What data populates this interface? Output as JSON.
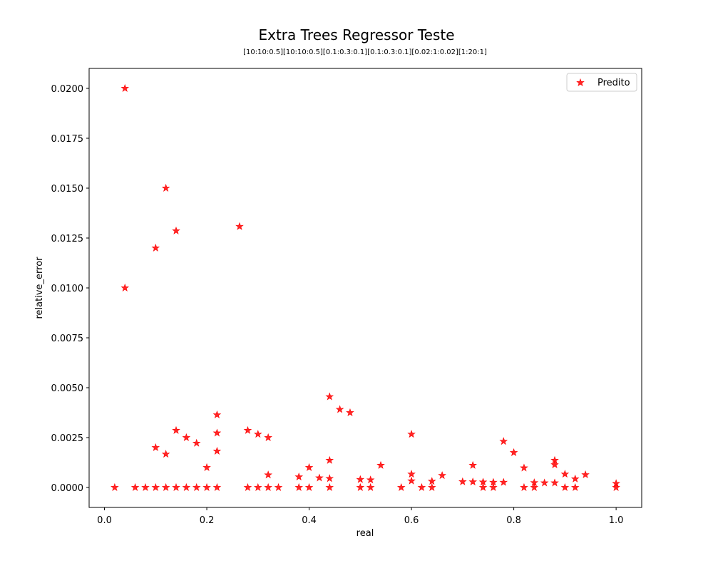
{
  "chart_data": {
    "type": "scatter",
    "title": "Extra Trees Regressor Teste",
    "subtitle": "[10:10:0.5][10:10:0.5][0.1:0.3:0.1][0.1:0.3:0.1][0.02:1:0.02][1:20:1]",
    "xlabel": "real",
    "ylabel": "relative_error",
    "xlim": [
      -0.03,
      1.05
    ],
    "ylim": [
      -0.001,
      0.021
    ],
    "xticks": [
      0.0,
      0.2,
      0.4,
      0.6,
      0.8,
      1.0
    ],
    "xtick_labels": [
      "0.0",
      "0.2",
      "0.4",
      "0.6",
      "0.8",
      "1.0"
    ],
    "yticks": [
      0.0,
      0.0025,
      0.005,
      0.0075,
      0.01,
      0.0125,
      0.015,
      0.0175,
      0.02
    ],
    "ytick_labels": [
      "0.0000",
      "0.0025",
      "0.0050",
      "0.0075",
      "0.0100",
      "0.0125",
      "0.0150",
      "0.0175",
      "0.0200"
    ],
    "grid": false,
    "legend_position": "top-right",
    "series": [
      {
        "name": "Predito",
        "color": "#ff0000",
        "marker": "star",
        "points": [
          [
            0.02,
            0.0
          ],
          [
            0.04,
            0.02
          ],
          [
            0.04,
            0.01
          ],
          [
            0.06,
            0.0
          ],
          [
            0.08,
            0.0
          ],
          [
            0.1,
            0.012
          ],
          [
            0.1,
            0.002
          ],
          [
            0.1,
            0.0
          ],
          [
            0.12,
            0.015
          ],
          [
            0.12,
            0.00167
          ],
          [
            0.12,
            0.0
          ],
          [
            0.14,
            0.01286
          ],
          [
            0.14,
            0.00286
          ],
          [
            0.14,
            0.0
          ],
          [
            0.16,
            0.0025
          ],
          [
            0.16,
            0.0
          ],
          [
            0.18,
            0.00222
          ],
          [
            0.18,
            0.0
          ],
          [
            0.2,
            0.001
          ],
          [
            0.2,
            0.0
          ],
          [
            0.22,
            0.00364
          ],
          [
            0.22,
            0.00273
          ],
          [
            0.22,
            0.00182
          ],
          [
            0.22,
            0.0
          ],
          [
            0.264,
            0.01308
          ],
          [
            0.28,
            0.00286
          ],
          [
            0.28,
            0.0
          ],
          [
            0.3,
            0.00267
          ],
          [
            0.3,
            0.0
          ],
          [
            0.32,
            0.0025
          ],
          [
            0.32,
            0.00063
          ],
          [
            0.32,
            0.0
          ],
          [
            0.34,
            0.0
          ],
          [
            0.38,
            0.00053
          ],
          [
            0.38,
            0.0
          ],
          [
            0.4,
            0.001
          ],
          [
            0.4,
            0.0
          ],
          [
            0.42,
            0.00048
          ],
          [
            0.44,
            0.00455
          ],
          [
            0.44,
            0.00136
          ],
          [
            0.44,
            0.00045
          ],
          [
            0.44,
            0.0
          ],
          [
            0.46,
            0.00391
          ],
          [
            0.48,
            0.00375
          ],
          [
            0.5,
            0.0004
          ],
          [
            0.5,
            0.0
          ],
          [
            0.52,
            0.00038
          ],
          [
            0.52,
            0.0
          ],
          [
            0.54,
            0.00111
          ],
          [
            0.58,
            0.0
          ],
          [
            0.6,
            0.00267
          ],
          [
            0.6,
            0.00067
          ],
          [
            0.6,
            0.00033
          ],
          [
            0.62,
            0.0
          ],
          [
            0.64,
            0.00031
          ],
          [
            0.64,
            0.0
          ],
          [
            0.66,
            0.0006
          ],
          [
            0.7,
            0.00029
          ],
          [
            0.72,
            0.00111
          ],
          [
            0.72,
            0.00028
          ],
          [
            0.74,
            0.00027
          ],
          [
            0.74,
            0.0
          ],
          [
            0.76,
            0.00026
          ],
          [
            0.76,
            0.0
          ],
          [
            0.78,
            0.00231
          ],
          [
            0.78,
            0.00026
          ],
          [
            0.8,
            0.00175
          ],
          [
            0.82,
            0.00098
          ],
          [
            0.82,
            0.0
          ],
          [
            0.84,
            0.00024
          ],
          [
            0.84,
            0.0
          ],
          [
            0.86,
            0.00023
          ],
          [
            0.88,
            0.00136
          ],
          [
            0.88,
            0.00114
          ],
          [
            0.88,
            0.00023
          ],
          [
            0.9,
            0.00067
          ],
          [
            0.9,
            0.0
          ],
          [
            0.92,
            0.00043
          ],
          [
            0.92,
            0.0
          ],
          [
            0.94,
            0.00064
          ],
          [
            1.0,
            0.0002
          ],
          [
            1.0,
            0.0
          ]
        ]
      }
    ]
  }
}
